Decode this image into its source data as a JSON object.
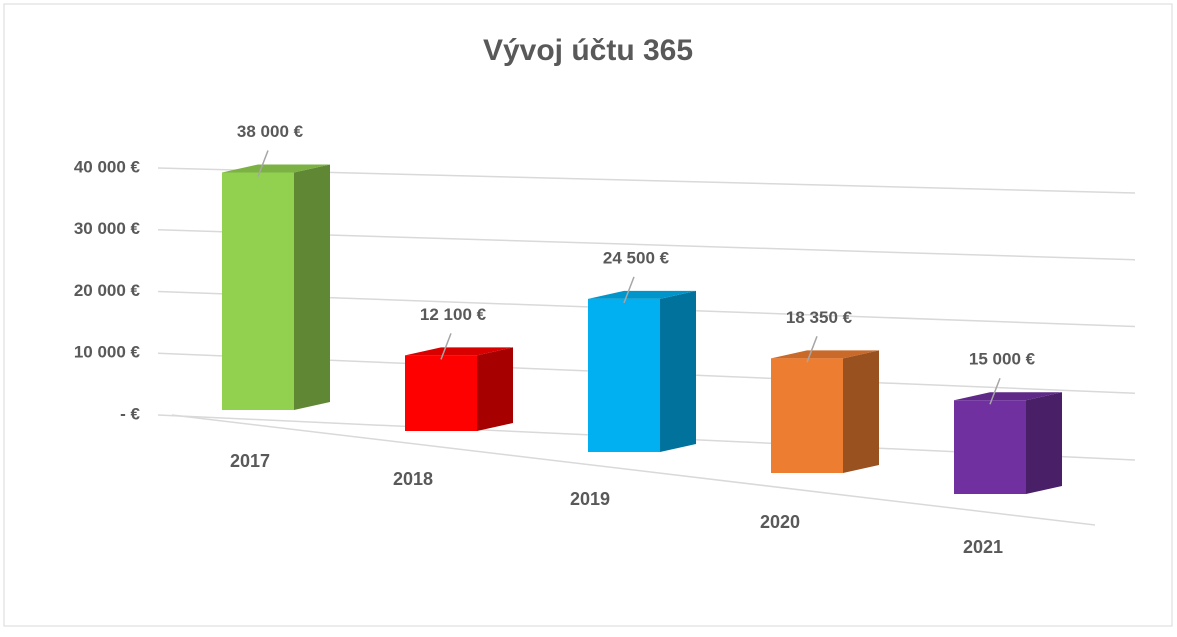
{
  "chart_data": {
    "type": "bar3d",
    "title": "Vývoj účtu 365",
    "categories": [
      "2017",
      "2018",
      "2019",
      "2020",
      "2021"
    ],
    "values": [
      38000,
      12100,
      24500,
      18350,
      15000
    ],
    "value_labels": [
      "38 000 €",
      "12 100 €",
      "24 500 €",
      "18 350 €",
      "15 000 €"
    ],
    "colors": [
      "#92d050",
      "#ff0000",
      "#00b0f0",
      "#ed7d31",
      "#7030a0"
    ],
    "ylim": [
      0,
      40000
    ],
    "yticks": [
      {
        "value": 0,
        "label": "-   €"
      },
      {
        "value": 10000,
        "label": "10 000 €"
      },
      {
        "value": 20000,
        "label": "20 000 €"
      },
      {
        "value": 30000,
        "label": "30 000 €"
      },
      {
        "value": 40000,
        "label": "40 000 €"
      }
    ],
    "grid": true
  }
}
